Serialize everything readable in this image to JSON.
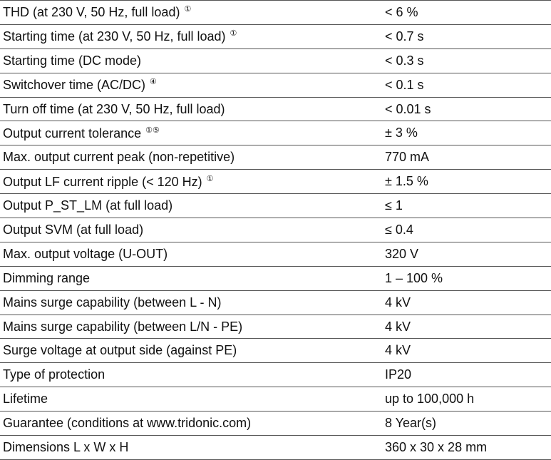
{
  "table": {
    "rows": [
      {
        "label": "THD (at 230 V, 50 Hz, full load)",
        "note": "①",
        "value": "< 6 %"
      },
      {
        "label": "Starting time (at 230 V, 50 Hz, full load)",
        "note": "①",
        "value": "< 0.7 s"
      },
      {
        "label": "Starting time (DC mode)",
        "value": "< 0.3 s"
      },
      {
        "label": "Switchover time (AC/DC)",
        "note": "④",
        "value": "< 0.1 s"
      },
      {
        "label": "Turn off time (at 230 V, 50 Hz, full load)",
        "value": "< 0.01 s"
      },
      {
        "label": "Output current tolerance",
        "note": "①⑤",
        "value": "± 3 %"
      },
      {
        "label": "Max. output current peak (non-repetitive)",
        "value": "770 mA"
      },
      {
        "label": "Output LF current ripple (< 120 Hz)",
        "note": "①",
        "value": "± 1.5 %"
      },
      {
        "label": "Output P_ST_LM (at full load)",
        "value": "≤ 1"
      },
      {
        "label": "Output SVM (at full load)",
        "value": "≤ 0.4"
      },
      {
        "label": "Max. output voltage (U-OUT)",
        "value": "320 V"
      },
      {
        "label": "Dimming range",
        "value": "1 – 100 %"
      },
      {
        "label": "Mains surge capability (between L - N)",
        "value": "4 kV"
      },
      {
        "label": "Mains surge capability (between L/N - PE)",
        "value": "4 kV"
      },
      {
        "label": "Surge voltage at output side (against PE)",
        "value": "4 kV"
      },
      {
        "label": "Type of protection",
        "value": "IP20"
      },
      {
        "label": "Lifetime",
        "value": "up to 100,000 h"
      },
      {
        "label": "Guarantee (conditions at www.tridonic.com)",
        "value": "8 Year(s)"
      },
      {
        "label": "Dimensions L x W x H",
        "value": "360 x 30 x 28 mm"
      }
    ]
  }
}
